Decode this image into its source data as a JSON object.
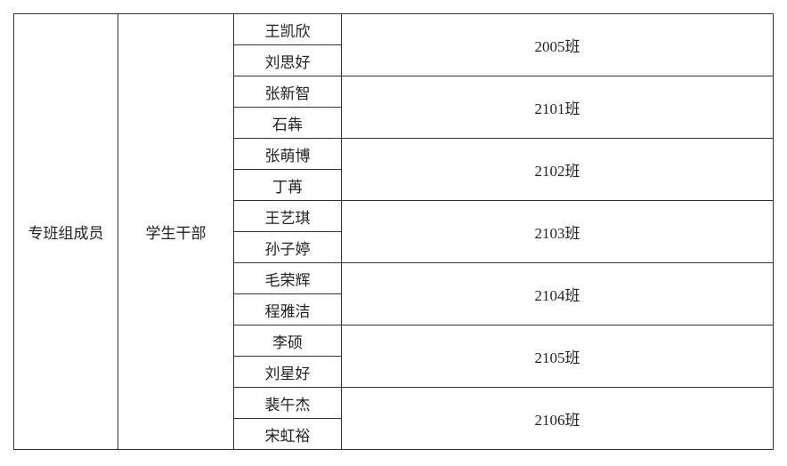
{
  "group_label": "专班组成员",
  "role_label": "学生干部",
  "classes": [
    {
      "class": "2005班",
      "members": [
        "王凯欣",
        "刘思好"
      ]
    },
    {
      "class": "2101班",
      "members": [
        "张新智",
        "石犇"
      ]
    },
    {
      "class": "2102班",
      "members": [
        "张萌博",
        "丁苒"
      ]
    },
    {
      "class": "2103班",
      "members": [
        "王艺琪",
        "孙子婷"
      ]
    },
    {
      "class": "2104班",
      "members": [
        "毛荣辉",
        "程雅洁"
      ]
    },
    {
      "class": "2105班",
      "members": [
        "李硕",
        "刘星好"
      ]
    },
    {
      "class": "2106班",
      "members": [
        "裴午杰",
        "宋虹裕"
      ]
    }
  ]
}
